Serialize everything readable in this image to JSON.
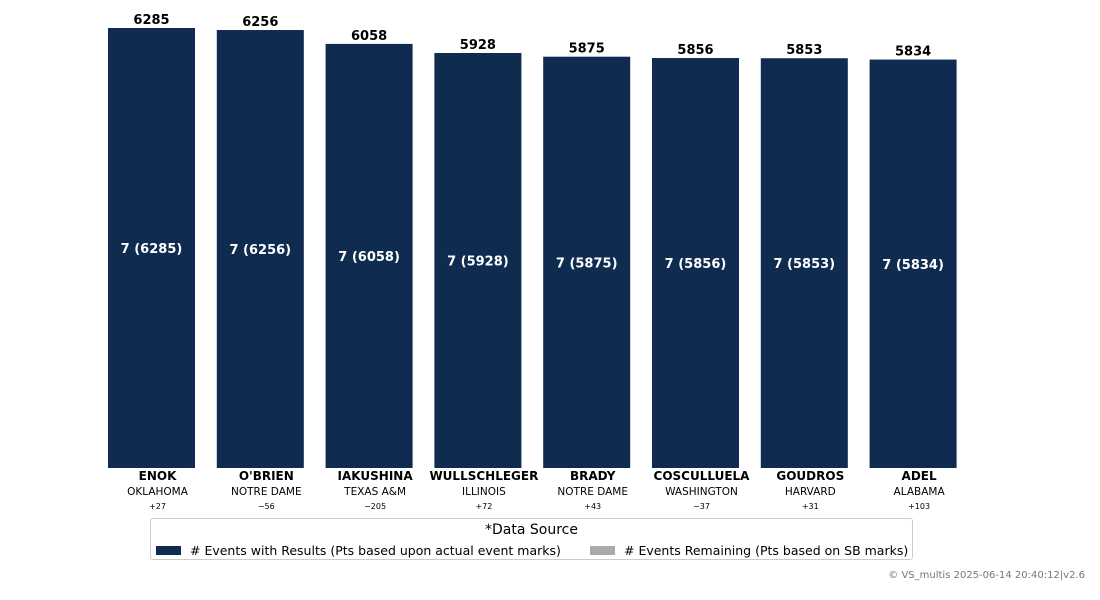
{
  "chart_data": {
    "type": "bar",
    "ylim": [
      0,
      6285
    ],
    "colors": {
      "results": "#0f2b50",
      "remaining": "#aaaaaa"
    },
    "bars": [
      {
        "name": "ENOK",
        "school": "OKLAHOMA",
        "delta": "+27",
        "total": "6285",
        "label": "7 (6285)",
        "value": 6285
      },
      {
        "name": "O'BRIEN",
        "school": "NOTRE DAME",
        "delta": "−56",
        "total": "6256",
        "label": "7 (6256)",
        "value": 6256
      },
      {
        "name": "IAKUSHINA",
        "school": "TEXAS A&M",
        "delta": "−205",
        "total": "6058",
        "label": "7 (6058)",
        "value": 6058
      },
      {
        "name": "WULLSCHLEGER",
        "school": "ILLINOIS",
        "delta": "+72",
        "total": "5928",
        "label": "7 (5928)",
        "value": 5928
      },
      {
        "name": "BRADY",
        "school": "NOTRE DAME",
        "delta": "+43",
        "total": "5875",
        "label": "7 (5875)",
        "value": 5875
      },
      {
        "name": "COSCULLUELA",
        "school": "WASHINGTON",
        "delta": "−37",
        "total": "5856",
        "label": "7 (5856)",
        "value": 5856
      },
      {
        "name": "GOUDROS",
        "school": "HARVARD",
        "delta": "+31",
        "total": "5853",
        "label": "7 (5853)",
        "value": 5853
      },
      {
        "name": "ADEL",
        "school": "ALABAMA",
        "delta": "+103",
        "total": "5834",
        "label": "7 (5834)",
        "value": 5834
      }
    ]
  },
  "legend": {
    "title": "*Data Source",
    "items": [
      {
        "label": "# Events with Results (Pts based upon actual event marks)",
        "color": "#0f2b50"
      },
      {
        "label": "# Events Remaining (Pts based on SB marks)",
        "color": "#aaaaaa"
      }
    ]
  },
  "footer": "© VS_multis 2025-06-14 20:40:12|v2.6"
}
